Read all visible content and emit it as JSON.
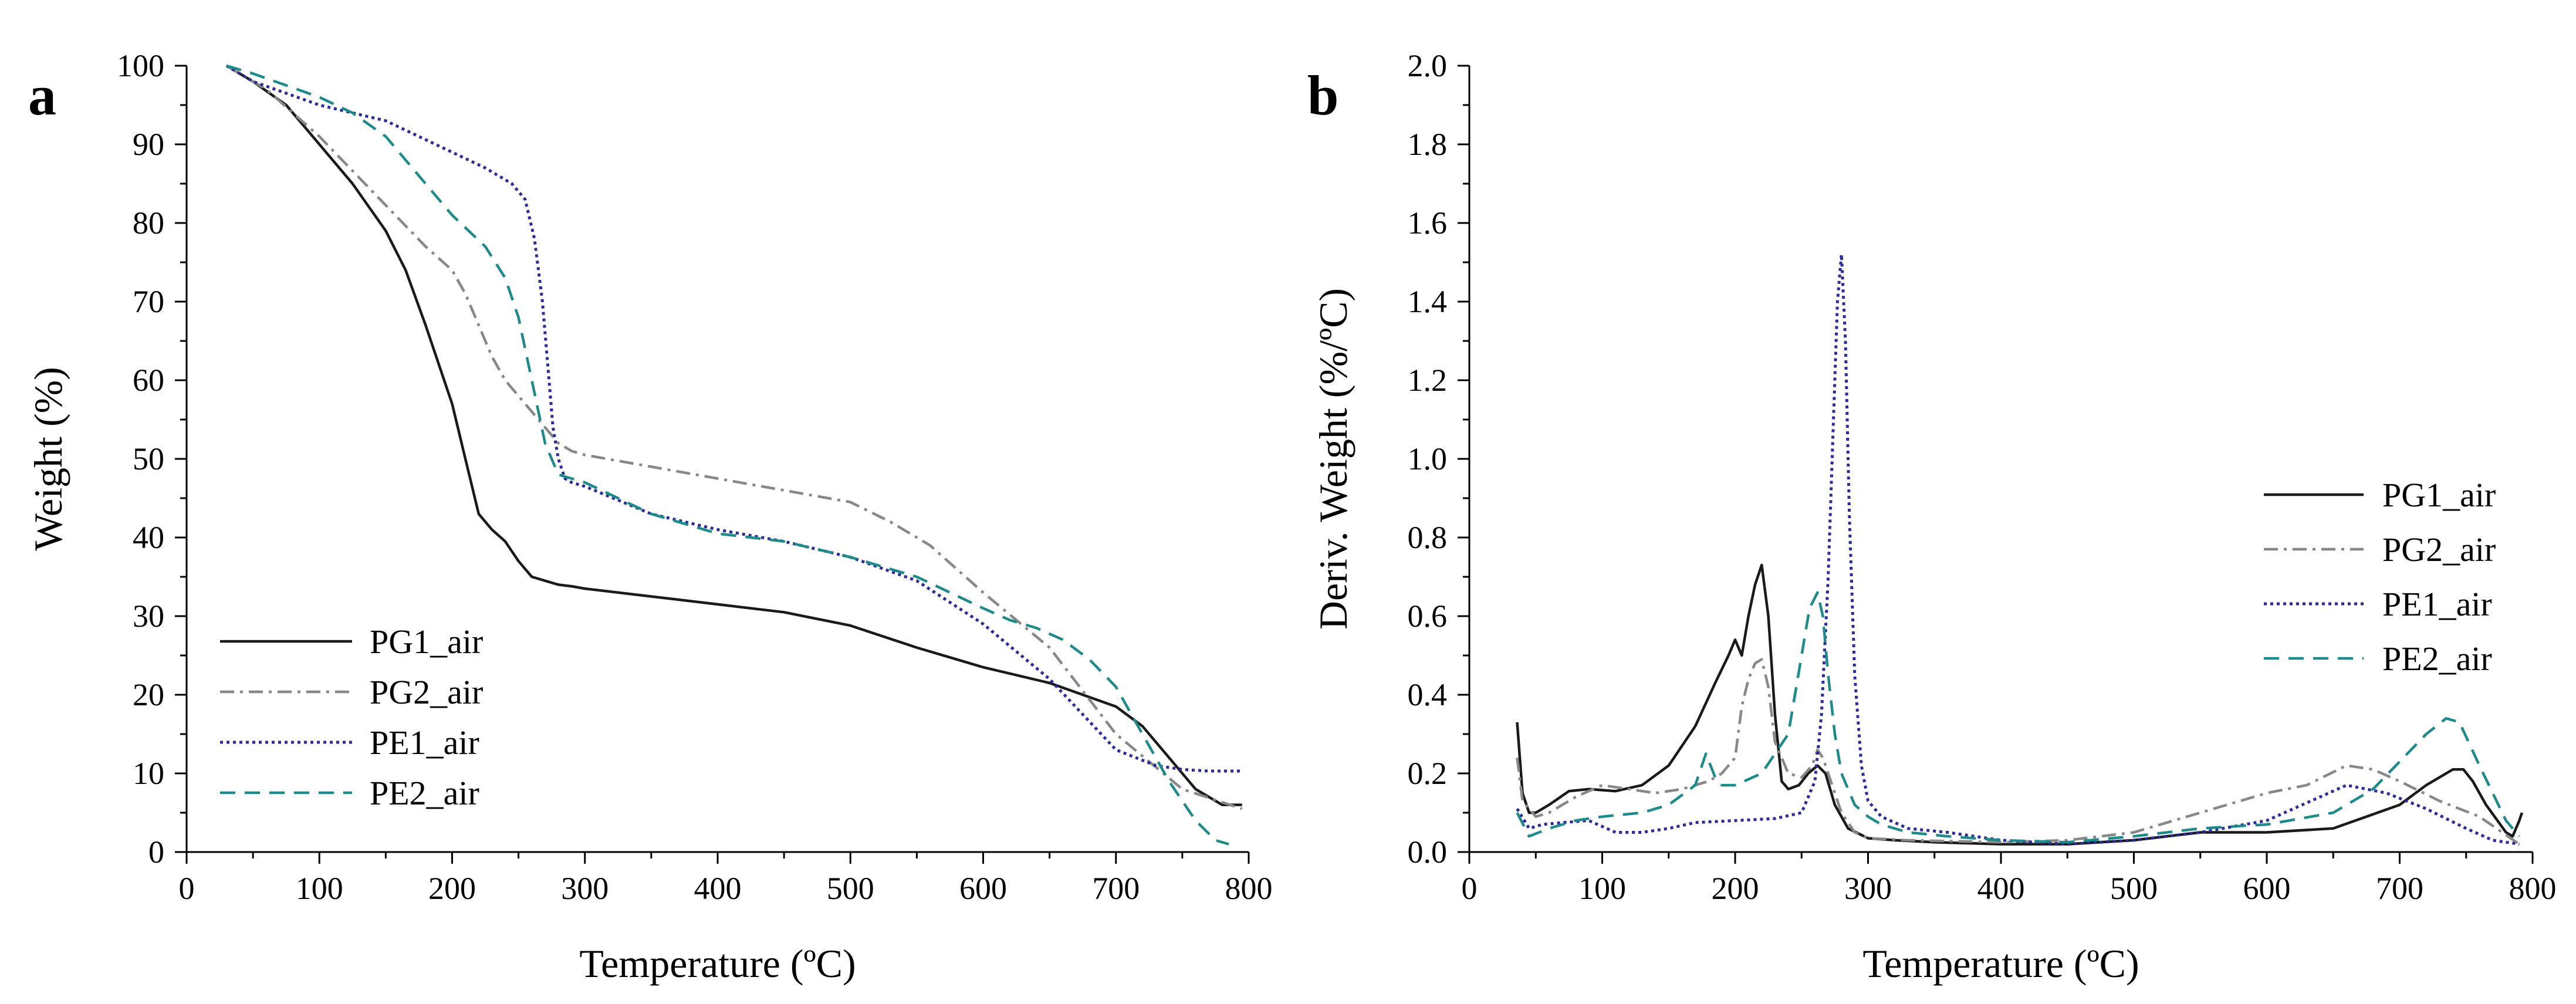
{
  "chart_data": [
    {
      "type": "line",
      "panel_label": "a",
      "title": "",
      "xlabel": "Temperature (ºC)",
      "ylabel": "Weight (%)",
      "xlim": [
        0,
        800
      ],
      "ylim": [
        0,
        100
      ],
      "xticks": [
        "0",
        "100",
        "200",
        "300",
        "400",
        "500",
        "600",
        "700",
        "800"
      ],
      "yticks": [
        "0",
        "10",
        "20",
        "30",
        "40",
        "50",
        "60",
        "70",
        "80",
        "90",
        "100"
      ],
      "legend_position": "bottom-left",
      "series": [
        {
          "name": "PG1_air",
          "color": "#1a1a1a",
          "style": "solid",
          "x": [
            30,
            50,
            75,
            100,
            125,
            150,
            165,
            180,
            190,
            200,
            210,
            220,
            230,
            240,
            250,
            260,
            270,
            280,
            290,
            300,
            350,
            400,
            450,
            500,
            550,
            600,
            650,
            700,
            720,
            740,
            760,
            780,
            795
          ],
          "y": [
            100,
            98,
            95,
            90,
            85,
            79,
            74,
            67,
            62,
            57,
            50,
            43,
            41,
            39.5,
            37,
            35,
            34.5,
            34,
            33.8,
            33.5,
            32.5,
            31.5,
            30.5,
            28.8,
            26,
            23.5,
            21.5,
            18.5,
            16,
            12,
            8,
            6,
            6
          ]
        },
        {
          "name": "PG2_air",
          "color": "#888888",
          "style": "dashdot",
          "x": [
            30,
            60,
            100,
            140,
            180,
            200,
            210,
            220,
            230,
            240,
            250,
            260,
            270,
            280,
            290,
            300,
            350,
            400,
            450,
            500,
            530,
            560,
            600,
            650,
            700,
            750,
            795
          ],
          "y": [
            100,
            97,
            91,
            84,
            77,
            74,
            71,
            67,
            63,
            60,
            58,
            56,
            54,
            52,
            51,
            50.5,
            49,
            47.5,
            46,
            44.5,
            42,
            39,
            33,
            26,
            15,
            8,
            5.5
          ]
        },
        {
          "name": "PE1_air",
          "color": "#2b2b9a",
          "style": "dotted",
          "x": [
            30,
            50,
            75,
            100,
            125,
            150,
            175,
            200,
            225,
            245,
            255,
            262,
            268,
            272,
            276,
            280,
            285,
            290,
            300,
            350,
            400,
            450,
            500,
            550,
            600,
            650,
            700,
            730,
            750,
            770,
            795
          ],
          "y": [
            100,
            98,
            96.5,
            95,
            94,
            93,
            91,
            89,
            87,
            85,
            83,
            78,
            70,
            62,
            54,
            50,
            47.5,
            47,
            46.5,
            43,
            41,
            39.5,
            37.5,
            34.5,
            29,
            22,
            13,
            11,
            10.5,
            10.3,
            10.3
          ]
        },
        {
          "name": "PE2_air",
          "color": "#1f8a8a",
          "style": "dashed",
          "x": [
            30,
            50,
            75,
            100,
            125,
            150,
            175,
            200,
            225,
            240,
            250,
            260,
            270,
            280,
            290,
            300,
            350,
            400,
            450,
            500,
            550,
            600,
            620,
            640,
            660,
            680,
            700,
            720,
            740,
            760,
            775,
            785
          ],
          "y": [
            100,
            99,
            97.5,
            96,
            94,
            91,
            86,
            81,
            77,
            73,
            68,
            60,
            52,
            48,
            47.5,
            47,
            43,
            40.5,
            39.5,
            37.5,
            35,
            31,
            29.5,
            28.5,
            27,
            24.5,
            21,
            15,
            9,
            4,
            1.5,
            1
          ]
        }
      ]
    },
    {
      "type": "line",
      "panel_label": "b",
      "title": "",
      "xlabel": "Temperature (ºC)",
      "ylabel": "Deriv. Weight (%/ºC)",
      "xlim": [
        0,
        800
      ],
      "ylim": [
        0,
        2.0
      ],
      "xticks": [
        "0",
        "100",
        "200",
        "300",
        "400",
        "500",
        "600",
        "700",
        "800"
      ],
      "yticks": [
        "0.0",
        "0.2",
        "0.4",
        "0.6",
        "0.8",
        "1.0",
        "1.2",
        "1.4",
        "1.6",
        "1.8",
        "2.0"
      ],
      "legend_position": "right-middle",
      "series": [
        {
          "name": "PG1_air",
          "color": "#1a1a1a",
          "style": "solid",
          "x": [
            36,
            40,
            45,
            50,
            60,
            75,
            90,
            110,
            130,
            150,
            170,
            185,
            195,
            200,
            205,
            210,
            215,
            220,
            225,
            230,
            235,
            240,
            248,
            255,
            262,
            268,
            275,
            285,
            300,
            320,
            350,
            400,
            450,
            500,
            550,
            600,
            650,
            700,
            720,
            740,
            748,
            755,
            765,
            780,
            785,
            790,
            792
          ],
          "y": [
            0.33,
            0.15,
            0.1,
            0.1,
            0.12,
            0.155,
            0.16,
            0.155,
            0.17,
            0.22,
            0.32,
            0.43,
            0.5,
            0.54,
            0.5,
            0.6,
            0.68,
            0.73,
            0.6,
            0.35,
            0.18,
            0.16,
            0.17,
            0.2,
            0.22,
            0.2,
            0.12,
            0.06,
            0.035,
            0.03,
            0.025,
            0.02,
            0.02,
            0.03,
            0.05,
            0.05,
            0.06,
            0.12,
            0.17,
            0.21,
            0.21,
            0.18,
            0.12,
            0.05,
            0.04,
            0.08,
            0.1
          ]
        },
        {
          "name": "PG2_air",
          "color": "#888888",
          "style": "dashdot",
          "x": [
            36,
            40,
            50,
            60,
            80,
            100,
            120,
            140,
            160,
            180,
            190,
            200,
            205,
            210,
            215,
            220,
            225,
            230,
            240,
            250,
            258,
            262,
            266,
            272,
            280,
            290,
            300,
            330,
            400,
            450,
            500,
            550,
            600,
            630,
            660,
            680,
            700,
            730,
            760,
            790
          ],
          "y": [
            0.24,
            0.13,
            0.09,
            0.1,
            0.14,
            0.17,
            0.16,
            0.15,
            0.16,
            0.18,
            0.2,
            0.24,
            0.37,
            0.44,
            0.48,
            0.49,
            0.42,
            0.28,
            0.2,
            0.19,
            0.22,
            0.26,
            0.24,
            0.18,
            0.1,
            0.05,
            0.035,
            0.03,
            0.025,
            0.03,
            0.05,
            0.1,
            0.15,
            0.17,
            0.22,
            0.21,
            0.18,
            0.13,
            0.09,
            0.02
          ]
        },
        {
          "name": "PE1_air",
          "color": "#2b2b9a",
          "style": "dotted",
          "x": [
            36,
            45,
            55,
            70,
            90,
            110,
            130,
            150,
            170,
            200,
            230,
            250,
            260,
            265,
            270,
            274,
            277,
            280,
            283,
            286,
            290,
            295,
            300,
            310,
            330,
            360,
            400,
            450,
            500,
            550,
            600,
            640,
            660,
            690,
            720,
            750,
            770,
            790
          ],
          "y": [
            0.11,
            0.06,
            0.07,
            0.075,
            0.08,
            0.05,
            0.05,
            0.06,
            0.075,
            0.08,
            0.085,
            0.1,
            0.18,
            0.35,
            0.7,
            1.1,
            1.4,
            1.52,
            1.3,
            0.85,
            0.45,
            0.22,
            0.13,
            0.09,
            0.06,
            0.05,
            0.03,
            0.02,
            0.03,
            0.05,
            0.08,
            0.14,
            0.17,
            0.15,
            0.11,
            0.06,
            0.03,
            0.02
          ]
        },
        {
          "name": "PE2_air",
          "color": "#1f8a8a",
          "style": "dashed",
          "x": [
            36,
            45,
            60,
            80,
            100,
            130,
            150,
            170,
            178,
            185,
            190,
            200,
            220,
            240,
            250,
            256,
            262,
            266,
            270,
            275,
            280,
            290,
            300,
            310,
            330,
            360,
            400,
            450,
            500,
            550,
            600,
            650,
            680,
            700,
            720,
            735,
            745,
            760,
            780,
            790
          ],
          "y": [
            0.1,
            0.04,
            0.06,
            0.08,
            0.09,
            0.1,
            0.12,
            0.17,
            0.25,
            0.19,
            0.17,
            0.17,
            0.2,
            0.3,
            0.5,
            0.62,
            0.66,
            0.6,
            0.45,
            0.3,
            0.2,
            0.12,
            0.09,
            0.07,
            0.05,
            0.04,
            0.03,
            0.025,
            0.04,
            0.06,
            0.07,
            0.1,
            0.16,
            0.23,
            0.3,
            0.34,
            0.33,
            0.22,
            0.08,
            0.04
          ]
        }
      ]
    }
  ]
}
